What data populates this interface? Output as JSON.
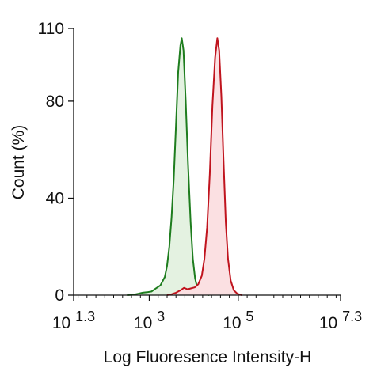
{
  "chart_data": {
    "type": "area",
    "title": "",
    "xlabel": "Log Fluoresence Intensity-H",
    "ylabel": "Count  (%)",
    "x_scale": "log",
    "xlim": [
      1.3,
      7.3
    ],
    "ylim": [
      0,
      110
    ],
    "x_ticks": [
      {
        "base": "10",
        "exp": "1.3"
      },
      {
        "base": "10",
        "exp": "3"
      },
      {
        "base": "10",
        "exp": "5"
      },
      {
        "base": "10",
        "exp": "7.3"
      }
    ],
    "y_ticks": [
      "0",
      "40",
      "80",
      "110"
    ],
    "grid": false,
    "legend": "none",
    "series": [
      {
        "color": "#1e7d1e",
        "fill": "#e4f2e1",
        "points": [
          [
            2.5,
            0
          ],
          [
            2.65,
            0.2
          ],
          [
            2.75,
            0.6
          ],
          [
            2.85,
            1.0
          ],
          [
            2.95,
            1.2
          ],
          [
            3.05,
            1.5
          ],
          [
            3.15,
            2.8
          ],
          [
            3.25,
            4.0
          ],
          [
            3.35,
            7.5
          ],
          [
            3.4,
            12
          ],
          [
            3.45,
            20
          ],
          [
            3.5,
            32
          ],
          [
            3.55,
            48
          ],
          [
            3.6,
            70
          ],
          [
            3.65,
            92
          ],
          [
            3.7,
            103
          ],
          [
            3.73,
            106
          ],
          [
            3.77,
            101
          ],
          [
            3.82,
            80
          ],
          [
            3.87,
            55
          ],
          [
            3.93,
            30
          ],
          [
            3.98,
            15
          ],
          [
            4.03,
            7
          ],
          [
            4.08,
            3
          ],
          [
            4.15,
            1.2
          ],
          [
            4.25,
            0.4
          ],
          [
            4.35,
            0
          ]
        ]
      },
      {
        "color": "#c0141e",
        "fill": "#fbe0e2",
        "points": [
          [
            3.4,
            0
          ],
          [
            3.5,
            0.4
          ],
          [
            3.6,
            1.0
          ],
          [
            3.7,
            2.0
          ],
          [
            3.78,
            3.0
          ],
          [
            3.86,
            2.4
          ],
          [
            3.94,
            2.8
          ],
          [
            4.02,
            3.2
          ],
          [
            4.1,
            4.5
          ],
          [
            4.18,
            8
          ],
          [
            4.24,
            15
          ],
          [
            4.3,
            28
          ],
          [
            4.36,
            50
          ],
          [
            4.42,
            78
          ],
          [
            4.48,
            98
          ],
          [
            4.53,
            106
          ],
          [
            4.57,
            101
          ],
          [
            4.62,
            82
          ],
          [
            4.67,
            55
          ],
          [
            4.72,
            30
          ],
          [
            4.77,
            15
          ],
          [
            4.83,
            6
          ],
          [
            4.9,
            2
          ],
          [
            4.98,
            0.6
          ],
          [
            5.08,
            0
          ]
        ]
      }
    ]
  }
}
